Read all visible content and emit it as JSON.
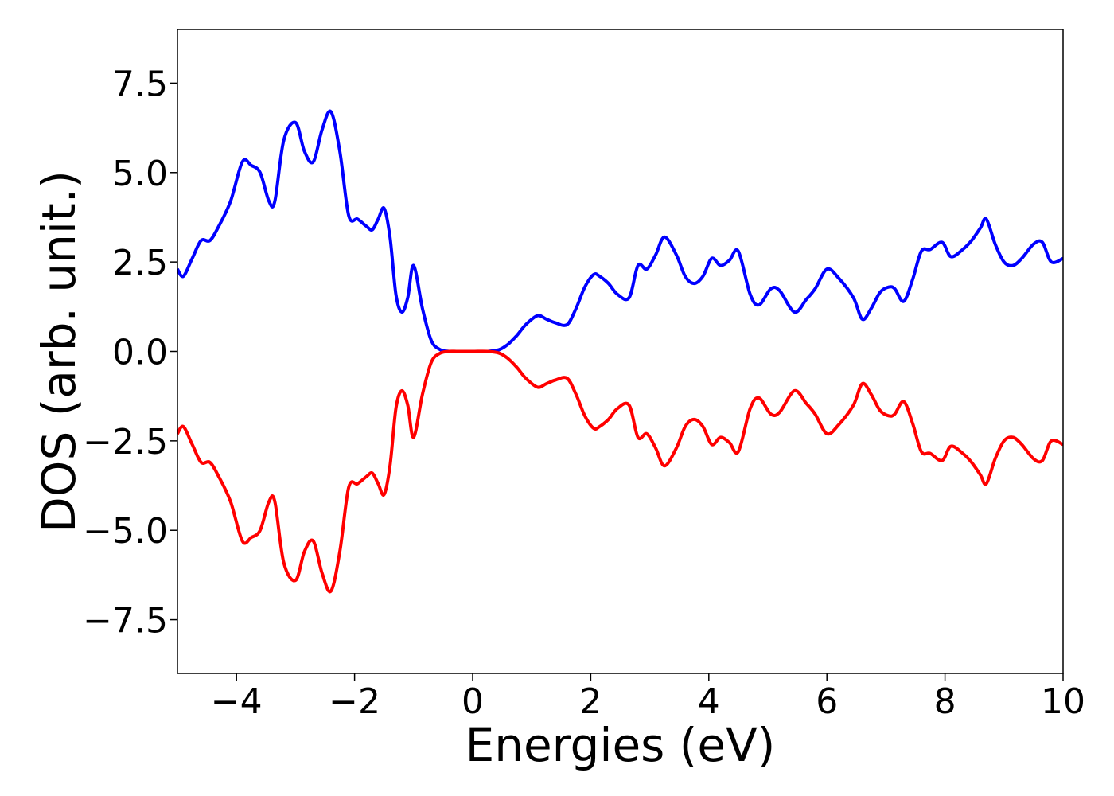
{
  "chart_data": {
    "type": "line",
    "title": "",
    "xlabel": "Energies (eV)",
    "ylabel": "DOS (arb. unit.)",
    "xlim": [
      -5,
      10
    ],
    "ylim": [
      -9,
      9
    ],
    "xticks": [
      -4,
      -2,
      0,
      2,
      4,
      6,
      8,
      10
    ],
    "yticks": [
      -7.5,
      -5.0,
      -2.5,
      0.0,
      2.5,
      5.0,
      7.5
    ],
    "xtick_labels": [
      "−4",
      "−2",
      "0",
      "2",
      "4",
      "6",
      "8",
      "10"
    ],
    "ytick_labels": [
      "−7.5",
      "−5.0",
      "−2.5",
      "0.0",
      "2.5",
      "5.0",
      "7.5"
    ],
    "grid": false,
    "series": [
      {
        "color": "#0000ff",
        "x": [
          -5.0,
          -4.9,
          -4.75,
          -4.6,
          -4.45,
          -4.3,
          -4.1,
          -3.9,
          -3.75,
          -3.6,
          -3.45,
          -3.35,
          -3.2,
          -3.0,
          -2.85,
          -2.7,
          -2.55,
          -2.4,
          -2.25,
          -2.1,
          -1.95,
          -1.8,
          -1.7,
          -1.6,
          -1.5,
          -1.4,
          -1.3,
          -1.2,
          -1.1,
          -1.0,
          -0.85,
          -0.7,
          -0.55,
          -0.4,
          -0.25,
          0.0,
          0.25,
          0.45,
          0.6,
          0.75,
          0.9,
          1.1,
          1.25,
          1.4,
          1.6,
          1.75,
          1.9,
          2.05,
          2.15,
          2.3,
          2.45,
          2.65,
          2.8,
          2.95,
          3.1,
          3.25,
          3.45,
          3.6,
          3.75,
          3.9,
          4.05,
          4.2,
          4.35,
          4.5,
          4.7,
          4.85,
          5.05,
          5.2,
          5.45,
          5.65,
          5.8,
          6.0,
          6.2,
          6.45,
          6.6,
          6.75,
          6.9,
          7.05,
          7.15,
          7.3,
          7.45,
          7.6,
          7.75,
          7.95,
          8.1,
          8.3,
          8.45,
          8.6,
          8.7,
          8.85,
          9.0,
          9.15,
          9.3,
          9.5,
          9.65,
          9.8,
          10.0
        ],
        "y": [
          2.3,
          2.1,
          2.6,
          3.1,
          3.1,
          3.5,
          4.2,
          5.3,
          5.2,
          5.0,
          4.2,
          4.2,
          5.9,
          6.4,
          5.6,
          5.3,
          6.2,
          6.7,
          5.6,
          3.8,
          3.7,
          3.5,
          3.4,
          3.7,
          4.0,
          3.2,
          1.6,
          1.1,
          1.5,
          2.4,
          1.2,
          0.3,
          0.05,
          0.0,
          0.0,
          0.0,
          0.0,
          0.05,
          0.2,
          0.45,
          0.75,
          1.0,
          0.9,
          0.8,
          0.75,
          1.2,
          1.8,
          2.15,
          2.1,
          1.9,
          1.6,
          1.5,
          2.4,
          2.3,
          2.7,
          3.2,
          2.7,
          2.1,
          1.9,
          2.1,
          2.6,
          2.4,
          2.55,
          2.8,
          1.6,
          1.3,
          1.75,
          1.7,
          1.1,
          1.45,
          1.75,
          2.3,
          2.05,
          1.5,
          0.9,
          1.2,
          1.65,
          1.8,
          1.75,
          1.4,
          2.0,
          2.8,
          2.85,
          3.05,
          2.65,
          2.85,
          3.1,
          3.45,
          3.7,
          3.0,
          2.5,
          2.4,
          2.6,
          3.0,
          3.05,
          2.5,
          2.6
        ]
      },
      {
        "color": "#ff0000",
        "x": [
          -5.0,
          -4.9,
          -4.75,
          -4.6,
          -4.45,
          -4.3,
          -4.1,
          -3.9,
          -3.75,
          -3.6,
          -3.45,
          -3.35,
          -3.2,
          -3.0,
          -2.85,
          -2.7,
          -2.55,
          -2.4,
          -2.25,
          -2.1,
          -1.95,
          -1.8,
          -1.7,
          -1.6,
          -1.5,
          -1.4,
          -1.3,
          -1.2,
          -1.1,
          -1.0,
          -0.85,
          -0.7,
          -0.55,
          -0.4,
          -0.25,
          0.0,
          0.25,
          0.45,
          0.6,
          0.75,
          0.9,
          1.1,
          1.25,
          1.4,
          1.6,
          1.75,
          1.9,
          2.05,
          2.15,
          2.3,
          2.45,
          2.65,
          2.8,
          2.95,
          3.1,
          3.25,
          3.45,
          3.6,
          3.75,
          3.9,
          4.05,
          4.2,
          4.35,
          4.5,
          4.7,
          4.85,
          5.05,
          5.2,
          5.45,
          5.65,
          5.8,
          6.0,
          6.2,
          6.45,
          6.6,
          6.75,
          6.9,
          7.05,
          7.15,
          7.3,
          7.45,
          7.6,
          7.75,
          7.95,
          8.1,
          8.3,
          8.45,
          8.6,
          8.7,
          8.85,
          9.0,
          9.15,
          9.3,
          9.5,
          9.65,
          9.8,
          10.0
        ],
        "y": [
          -2.3,
          -2.1,
          -2.6,
          -3.1,
          -3.1,
          -3.5,
          -4.2,
          -5.3,
          -5.2,
          -5.0,
          -4.2,
          -4.2,
          -5.9,
          -6.4,
          -5.6,
          -5.3,
          -6.2,
          -6.7,
          -5.6,
          -3.8,
          -3.7,
          -3.5,
          -3.4,
          -3.7,
          -4.0,
          -3.2,
          -1.6,
          -1.1,
          -1.5,
          -2.4,
          -1.2,
          -0.3,
          -0.05,
          0.0,
          0.0,
          0.0,
          0.0,
          -0.05,
          -0.2,
          -0.45,
          -0.75,
          -1.0,
          -0.9,
          -0.8,
          -0.75,
          -1.2,
          -1.8,
          -2.15,
          -2.1,
          -1.9,
          -1.6,
          -1.5,
          -2.4,
          -2.3,
          -2.7,
          -3.2,
          -2.7,
          -2.1,
          -1.9,
          -2.1,
          -2.6,
          -2.4,
          -2.55,
          -2.8,
          -1.6,
          -1.3,
          -1.75,
          -1.7,
          -1.1,
          -1.45,
          -1.75,
          -2.3,
          -2.05,
          -1.5,
          -0.9,
          -1.2,
          -1.65,
          -1.8,
          -1.75,
          -1.4,
          -2.0,
          -2.8,
          -2.85,
          -3.05,
          -2.65,
          -2.85,
          -3.1,
          -3.45,
          -3.7,
          -3.0,
          -2.5,
          -2.4,
          -2.6,
          -3.0,
          -3.05,
          -2.5,
          -2.6
        ]
      }
    ]
  }
}
